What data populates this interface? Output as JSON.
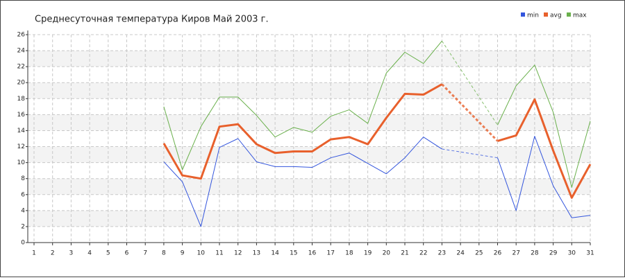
{
  "chart_data": {
    "type": "line",
    "title": "Среднесуточная температура Киров  Май 2003 г.",
    "x": [
      1,
      2,
      3,
      4,
      5,
      6,
      7,
      8,
      9,
      10,
      11,
      12,
      13,
      14,
      15,
      16,
      17,
      18,
      19,
      20,
      21,
      22,
      23,
      24,
      25,
      26,
      27,
      28,
      29,
      30,
      31
    ],
    "series": [
      {
        "name": "min",
        "color": "#3355dd",
        "values": [
          null,
          null,
          null,
          null,
          null,
          null,
          null,
          10.1,
          7.6,
          2.0,
          11.9,
          13.0,
          10.1,
          9.5,
          9.5,
          9.4,
          10.6,
          11.2,
          9.9,
          8.6,
          10.6,
          13.2,
          11.7,
          null,
          null,
          10.6,
          4.0,
          13.3,
          7.1,
          3.1,
          3.4
        ]
      },
      {
        "name": "avg",
        "color": "#e8602c",
        "values": [
          null,
          null,
          null,
          null,
          null,
          null,
          null,
          12.4,
          8.4,
          8.0,
          14.5,
          14.8,
          12.3,
          11.2,
          11.4,
          11.4,
          12.9,
          13.2,
          12.3,
          15.6,
          18.6,
          18.5,
          19.8,
          null,
          null,
          12.7,
          13.4,
          17.9,
          11.5,
          5.6,
          9.8
        ]
      },
      {
        "name": "max",
        "color": "#6ab04c",
        "values": [
          null,
          null,
          null,
          null,
          null,
          null,
          null,
          17.0,
          9.1,
          14.5,
          18.2,
          18.2,
          15.9,
          13.2,
          14.4,
          13.8,
          15.8,
          16.6,
          14.9,
          21.2,
          23.8,
          22.4,
          25.2,
          null,
          null,
          14.7,
          19.6,
          22.2,
          16.3,
          6.9,
          15.2
        ]
      }
    ],
    "xlim": [
      1,
      31
    ],
    "xticks": [
      1,
      2,
      3,
      4,
      5,
      6,
      7,
      8,
      9,
      10,
      11,
      12,
      13,
      14,
      15,
      16,
      17,
      18,
      19,
      20,
      21,
      22,
      23,
      24,
      25,
      26,
      27,
      28,
      29,
      30,
      31
    ],
    "ylim": [
      0,
      26
    ],
    "yticks": [
      0,
      2,
      4,
      6,
      8,
      10,
      12,
      14,
      16,
      18,
      20,
      22,
      24,
      26
    ],
    "grid": true,
    "legend": "top-right"
  }
}
